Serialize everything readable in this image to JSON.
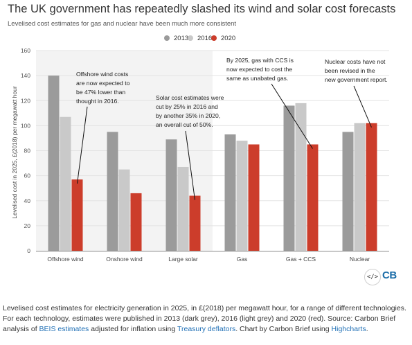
{
  "header": {
    "title": "The UK government has repeatedly slashed its wind and solar cost forecasts",
    "subtitle": "Levelised cost estimates for gas and nuclear have been much more consistent"
  },
  "chart_data": {
    "type": "bar",
    "categories": [
      "Offshore wind",
      "Onshore wind",
      "Large solar",
      "Gas",
      "Gas + CCS",
      "Nuclear"
    ],
    "series": [
      {
        "name": "2013",
        "color": "#9b9b9b",
        "values": [
          140,
          95,
          89,
          93,
          116,
          95
        ]
      },
      {
        "name": "2016",
        "color": "#c9c9c9",
        "values": [
          107,
          65,
          67,
          88,
          118,
          102
        ]
      },
      {
        "name": "2020",
        "color": "#cc3d2b",
        "values": [
          57,
          46,
          44,
          85,
          85,
          102
        ]
      }
    ],
    "ylabel": "Levelised cost in 2025, £(2018) per megawatt hour",
    "ylim": [
      0,
      160
    ],
    "yticks": [
      0,
      20,
      40,
      60,
      80,
      100,
      120,
      140,
      160
    ],
    "legend_position": "top-center",
    "shaded_region_categories": [
      "Offshore wind",
      "Onshore wind",
      "Large solar"
    ],
    "annotations": [
      {
        "id": "offshore",
        "lines": [
          "Offshore wind costs",
          "are now expected to",
          "be 47% lower than",
          "thought in 2016."
        ],
        "target_category": 0,
        "target_series": 2
      },
      {
        "id": "solar",
        "lines": [
          "Solar cost estimates were",
          "cut by 25% in 2016 and",
          "by another 35% in 2020,",
          "an overall cut of 50%."
        ],
        "target_category": 2,
        "target_series": 2
      },
      {
        "id": "ccs",
        "lines": [
          "By 2025, gas with CCS is",
          "now expected to cost the",
          "same as unabated gas."
        ],
        "target_category": 4,
        "target_series": 2
      },
      {
        "id": "nuclear",
        "lines": [
          "Nuclear costs have not",
          "been revised in the",
          "new government report."
        ],
        "target_category": 5,
        "target_series": 2
      }
    ]
  },
  "footer": {
    "caption_text": "Levelised cost estimates for electricity generation in 2025, in £(2018) per megawatt hour, for a range of different technologies. For each technology, estimates were published in 2013 (dark grey), 2016 (light grey) and 2020 (red). Source: Carbon Brief analysis of",
    "caption_link_beis": "BEIS estimates",
    "caption_text_2": "adjusted for inflation using",
    "caption_link_treasury": "Treasury deflators",
    "caption_text_3": ". Chart by Carbon Brief using",
    "caption_link_highcharts": "Highcharts",
    "caption_text_4": ".",
    "embed_icon": "</>",
    "logo_text": "CB"
  }
}
